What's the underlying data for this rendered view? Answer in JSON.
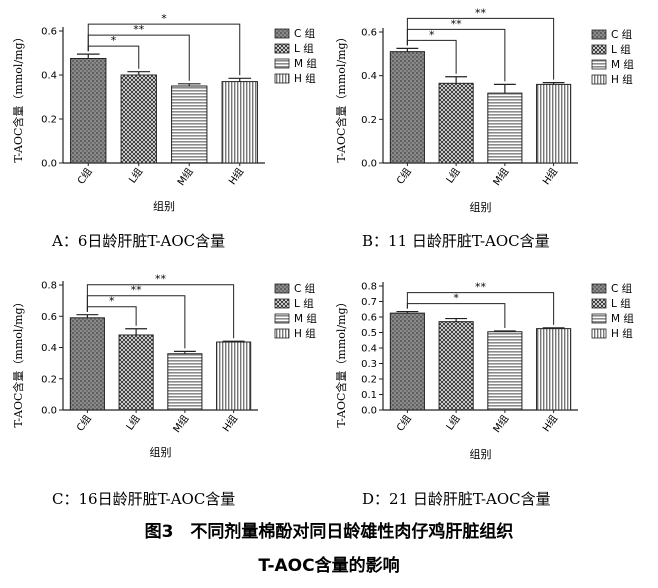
{
  "figure": {
    "caption_line1": "图3　不同剂量棉酚对同日龄雄性肉仔鸡肝脏组织",
    "caption_line2": "T-AOC含量的影响"
  },
  "legend_labels": [
    "C 组",
    "L 组",
    "M 组",
    "H 组"
  ],
  "chart_data": [
    {
      "type": "bar",
      "panel": "A",
      "caption": "A：6日龄肝脏T-AOC含量",
      "ylabel": "T-AOC含量（mmol/mg）",
      "xlabel": "组别",
      "categories": [
        "C组",
        "L组",
        "M组",
        "H组"
      ],
      "values": [
        0.475,
        0.4,
        0.35,
        0.37
      ],
      "errors": [
        0.02,
        0.015,
        0.01,
        0.015
      ],
      "ylim": [
        0,
        0.6
      ],
      "yticks": [
        "0.0",
        "0.2",
        "0.4",
        "0.6"
      ],
      "significance": [
        {
          "pair": [
            0,
            1
          ],
          "label": "*"
        },
        {
          "pair": [
            0,
            2
          ],
          "label": "**"
        },
        {
          "pair": [
            0,
            3
          ],
          "label": "*"
        }
      ]
    },
    {
      "type": "bar",
      "panel": "B",
      "caption": "B：11 日龄肝脏T-AOC含量",
      "ylabel": "T-AOC含量（mmol/mg）",
      "xlabel": "组别",
      "categories": [
        "C组",
        "L组",
        "M组",
        "H组"
      ],
      "values": [
        0.51,
        0.365,
        0.32,
        0.36
      ],
      "errors": [
        0.015,
        0.03,
        0.04,
        0.008
      ],
      "ylim": [
        0,
        0.6
      ],
      "yticks": [
        "0.0",
        "0.2",
        "0.4",
        "0.6"
      ],
      "significance": [
        {
          "pair": [
            0,
            1
          ],
          "label": "*"
        },
        {
          "pair": [
            0,
            2
          ],
          "label": "**"
        },
        {
          "pair": [
            0,
            3
          ],
          "label": "**"
        }
      ]
    },
    {
      "type": "bar",
      "panel": "C",
      "caption": "C：16日龄肝脏T-AOC含量",
      "ylabel": "T-AOC含量（mmol/mg）",
      "xlabel": "组别",
      "categories": [
        "C组",
        "L组",
        "M组",
        "H组"
      ],
      "values": [
        0.59,
        0.48,
        0.36,
        0.435
      ],
      "errors": [
        0.02,
        0.04,
        0.015,
        0.005
      ],
      "ylim": [
        0,
        0.8
      ],
      "yticks": [
        "0.0",
        "0.2",
        "0.4",
        "0.6",
        "0.8"
      ],
      "significance": [
        {
          "pair": [
            0,
            1
          ],
          "label": "*"
        },
        {
          "pair": [
            0,
            2
          ],
          "label": "**"
        },
        {
          "pair": [
            0,
            3
          ],
          "label": "**"
        }
      ]
    },
    {
      "type": "bar",
      "panel": "D",
      "caption": "D：21 日龄肝脏T-AOC含量",
      "ylabel": "T-AOC含量（mmol/mg）",
      "xlabel": "组别",
      "categories": [
        "C组",
        "L组",
        "M组",
        "H组"
      ],
      "values": [
        0.625,
        0.57,
        0.505,
        0.525
      ],
      "errors": [
        0.01,
        0.02,
        0.005,
        0.005
      ],
      "ylim": [
        0,
        0.8
      ],
      "yticks": [
        "0.0",
        "0.1",
        "0.2",
        "0.3",
        "0.4",
        "0.5",
        "0.6",
        "0.7",
        "0.8"
      ],
      "significance": [
        {
          "pair": [
            0,
            2
          ],
          "label": "*"
        },
        {
          "pair": [
            0,
            3
          ],
          "label": "**"
        }
      ]
    }
  ]
}
